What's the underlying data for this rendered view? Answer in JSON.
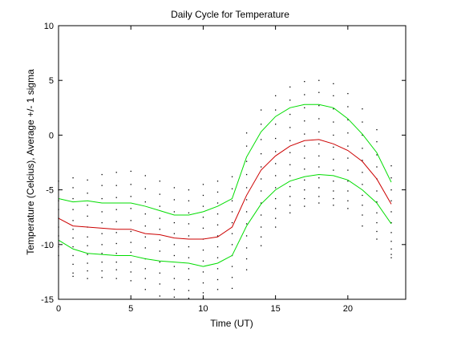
{
  "chart_data": {
    "type": "line",
    "title": "Daily Cycle for Temperature",
    "xlabel": "Time (UT)",
    "ylabel": "Temperature (Celcius), Average +/- 1 sigma",
    "xlim": [
      0,
      24
    ],
    "ylim": [
      -15,
      10
    ],
    "xticks": [
      0,
      5,
      10,
      15,
      20
    ],
    "yticks": [
      -15,
      -10,
      -5,
      0,
      5,
      10
    ],
    "grid": false,
    "x": [
      0,
      1,
      2,
      3,
      4,
      5,
      6,
      7,
      8,
      9,
      10,
      11,
      12,
      13,
      14,
      15,
      16,
      17,
      18,
      19,
      20,
      21,
      22,
      23
    ],
    "series": [
      {
        "color": "#00dd00",
        "values": [
          -5.8,
          -6.1,
          -6.0,
          -6.2,
          -6.2,
          -6.2,
          -6.5,
          -6.9,
          -7.3,
          -7.3,
          -7.0,
          -6.5,
          -5.8,
          -2.0,
          0.3,
          1.7,
          2.5,
          2.8,
          2.8,
          2.5,
          1.5,
          0.1,
          -1.6,
          -4.3
        ]
      },
      {
        "color": "#cc0000",
        "values": [
          -7.6,
          -8.3,
          -8.4,
          -8.5,
          -8.6,
          -8.6,
          -9.0,
          -9.1,
          -9.4,
          -9.5,
          -9.5,
          -9.3,
          -8.4,
          -5.5,
          -3.2,
          -1.9,
          -1.0,
          -0.5,
          -0.4,
          -0.8,
          -1.4,
          -2.4,
          -4.0,
          -6.3
        ]
      },
      {
        "color": "#00dd00",
        "values": [
          -9.6,
          -10.4,
          -10.8,
          -10.9,
          -11.0,
          -11.0,
          -11.3,
          -11.5,
          -11.6,
          -11.7,
          -12.0,
          -11.7,
          -11.0,
          -8.3,
          -6.3,
          -5.0,
          -4.2,
          -3.8,
          -3.6,
          -3.7,
          -4.1,
          -5.0,
          -6.2,
          -8.1
        ]
      }
    ],
    "scatter": {
      "color": "#000000",
      "x": [
        0,
        0,
        0,
        0,
        0,
        0,
        0,
        0,
        0,
        1,
        1,
        1,
        1,
        1,
        1,
        1,
        1,
        1,
        1,
        1,
        1,
        2,
        2,
        2,
        2,
        2,
        2,
        2,
        2,
        2,
        2,
        2,
        3,
        3,
        3,
        3,
        3,
        3,
        3,
        3,
        3,
        3,
        3,
        4,
        4,
        4,
        4,
        4,
        4,
        4,
        4,
        4,
        4,
        4,
        5,
        5,
        5,
        5,
        5,
        5,
        5,
        5,
        5,
        5,
        5,
        6,
        6,
        6,
        6,
        6,
        6,
        6,
        6,
        6,
        6,
        6,
        7,
        7,
        7,
        7,
        7,
        7,
        7,
        7,
        7,
        7,
        7,
        8,
        8,
        8,
        8,
        8,
        8,
        8,
        8,
        8,
        8,
        8,
        9,
        9,
        9,
        9,
        9,
        9,
        9,
        9,
        9,
        9,
        9,
        10,
        10,
        10,
        10,
        10,
        10,
        10,
        10,
        10,
        10,
        10,
        10,
        11,
        11,
        11,
        11,
        11,
        11,
        11,
        11,
        11,
        11,
        11,
        12,
        12,
        12,
        12,
        12,
        12,
        12,
        12,
        12,
        12,
        12,
        13,
        13,
        13,
        13,
        13,
        13,
        13,
        13,
        13,
        13,
        13,
        13,
        14,
        14,
        14,
        14,
        14,
        14,
        14,
        14,
        14,
        14,
        14,
        14,
        15,
        15,
        15,
        15,
        15,
        15,
        15,
        15,
        15,
        15,
        15,
        15,
        16,
        16,
        16,
        16,
        16,
        16,
        16,
        16,
        16,
        16,
        16,
        16,
        17,
        17,
        17,
        17,
        17,
        17,
        17,
        17,
        17,
        17,
        17,
        17,
        18,
        18,
        18,
        18,
        18,
        18,
        18,
        18,
        18,
        18,
        18,
        18,
        19,
        19,
        19,
        19,
        19,
        19,
        19,
        19,
        19,
        19,
        19,
        19,
        20,
        20,
        20,
        20,
        20,
        20,
        20,
        20,
        20,
        20,
        20,
        21,
        21,
        21,
        21,
        21,
        21,
        21,
        21,
        21,
        21,
        21,
        22,
        22,
        22,
        22,
        22,
        22,
        22,
        22,
        22,
        22,
        22,
        23,
        23,
        23,
        23,
        23,
        23,
        23,
        23,
        23,
        23,
        23
      ],
      "y": [
        -4.2,
        -5.0,
        -6.0,
        -6.8,
        -7.6,
        -8.4,
        -9.2,
        -10.2,
        -11.0,
        -3.9,
        -4.8,
        -5.8,
        -6.8,
        -7.8,
        -8.6,
        -9.4,
        -10.2,
        -11.0,
        -11.8,
        -12.6,
        -12.9,
        -4.1,
        -5.3,
        -6.4,
        -7.4,
        -8.4,
        -9.3,
        -10.1,
        -10.9,
        -11.7,
        -12.4,
        -13.1,
        -3.6,
        -4.6,
        -5.8,
        -7.0,
        -8.0,
        -9.0,
        -10.0,
        -10.8,
        -11.6,
        -12.4,
        -13.0,
        -3.4,
        -4.6,
        -5.7,
        -6.8,
        -7.9,
        -8.9,
        -9.9,
        -10.8,
        -11.6,
        -12.3,
        -13.1,
        -3.3,
        -4.5,
        -5.6,
        -6.7,
        -7.8,
        -8.8,
        -9.8,
        -10.7,
        -11.6,
        -12.5,
        -13.3,
        -3.7,
        -4.9,
        -6.1,
        -7.2,
        -8.3,
        -9.3,
        -10.3,
        -11.3,
        -12.2,
        -13.1,
        -14.1,
        -4.2,
        -5.4,
        -6.5,
        -7.6,
        -8.6,
        -9.6,
        -10.6,
        -11.6,
        -12.6,
        -13.6,
        -14.7,
        -4.8,
        -5.9,
        -7.0,
        -8.0,
        -9.0,
        -10.0,
        -11.0,
        -12.0,
        -13.1,
        -14.1,
        -14.8,
        -5.0,
        -6.0,
        -7.1,
        -8.1,
        -9.2,
        -10.2,
        -11.2,
        -12.2,
        -13.2,
        -14.2,
        -14.9,
        -4.5,
        -5.5,
        -6.5,
        -7.5,
        -8.5,
        -9.5,
        -10.5,
        -11.5,
        -12.5,
        -13.5,
        -14.4,
        -14.9,
        -4.2,
        -5.2,
        -6.2,
        -7.2,
        -8.2,
        -9.2,
        -10.2,
        -11.2,
        -12.2,
        -13.2,
        -14.1,
        -3.8,
        -4.9,
        -6.0,
        -7.0,
        -8.0,
        -9.0,
        -10.0,
        -11.0,
        -12.0,
        -13.0,
        -14.0,
        0.2,
        -1.0,
        -2.4,
        -3.6,
        -4.8,
        -5.9,
        -7.0,
        -8.1,
        -9.2,
        -10.3,
        -11.3,
        -12.3,
        2.3,
        1.0,
        -0.4,
        -1.7,
        -2.9,
        -4.0,
        -5.1,
        -6.2,
        -7.3,
        -8.4,
        -9.3,
        -10.1,
        3.6,
        2.3,
        1.0,
        -0.3,
        -1.5,
        -2.6,
        -3.7,
        -4.8,
        -5.8,
        -6.7,
        -7.6,
        -8.4,
        4.4,
        3.2,
        1.9,
        0.7,
        -0.5,
        -1.6,
        -2.7,
        -3.7,
        -4.7,
        -5.6,
        -6.4,
        -7.1,
        4.9,
        3.7,
        2.5,
        1.3,
        0.1,
        -1.0,
        -2.1,
        -3.1,
        -4.1,
        -5.0,
        -5.8,
        -6.5,
        5.0,
        3.9,
        2.7,
        1.5,
        0.3,
        -0.8,
        -1.9,
        -2.9,
        -3.9,
        -4.8,
        -5.6,
        -6.2,
        4.7,
        3.6,
        2.4,
        1.2,
        0.0,
        -1.1,
        -2.2,
        -3.2,
        -4.2,
        -5.1,
        -5.8,
        -6.4,
        3.8,
        2.6,
        1.4,
        0.2,
        -1.0,
        -2.1,
        -3.2,
        -4.2,
        -5.1,
        -6.0,
        -6.7,
        2.4,
        1.2,
        0.0,
        -1.2,
        -2.3,
        -3.4,
        -4.5,
        -5.5,
        -6.4,
        -7.3,
        -8.3,
        0.5,
        -0.6,
        -1.8,
        -2.9,
        -4.0,
        -5.1,
        -6.1,
        -7.1,
        -8.0,
        -8.8,
        -9.5,
        -2.8,
        -3.9,
        -5.0,
        -6.0,
        -7.0,
        -8.0,
        -8.9,
        -9.7,
        -10.4,
        -10.9,
        -11.2
      ]
    }
  }
}
